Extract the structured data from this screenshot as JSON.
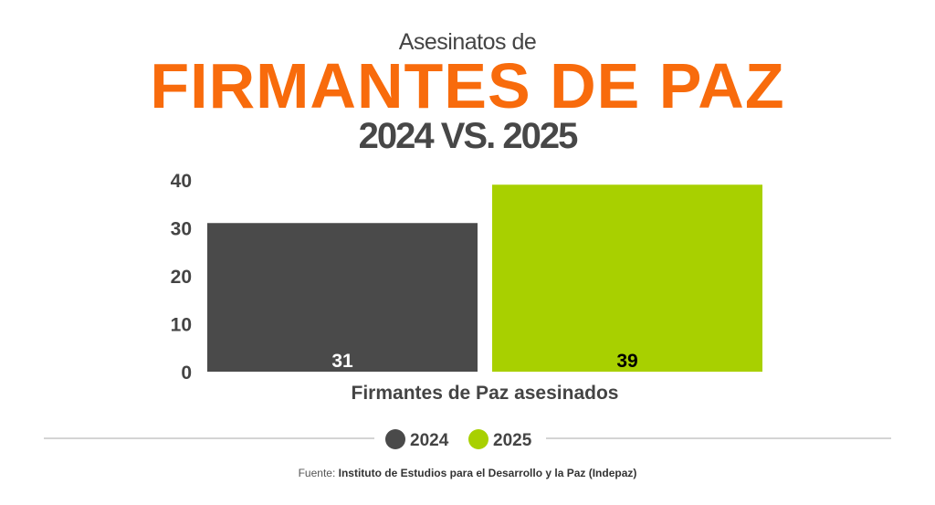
{
  "header": {
    "pre_title": "Asesinatos de",
    "title": "FIRMANTES DE PAZ",
    "subtitle": "2024 VS. 2025"
  },
  "chart_data": {
    "type": "bar",
    "title": "FIRMANTES DE PAZ",
    "categories": [
      "Firmantes de Paz asesinados"
    ],
    "xlabel": "Firmantes de Paz asesinados",
    "ylabel": "",
    "ylim": [
      0,
      40
    ],
    "yticks": [
      0,
      10,
      20,
      30,
      40
    ],
    "grid": false,
    "legend_position": "bottom",
    "series": [
      {
        "name": "2024",
        "values": [
          31
        ],
        "color": "#4a4a4a",
        "label_color": "#ffffff"
      },
      {
        "name": "2025",
        "values": [
          39
        ],
        "color": "#a8d000",
        "label_color": "#000000"
      }
    ]
  },
  "footer": {
    "source_label": "Fuente:",
    "source": "Instituto de Estudios para el Desarrollo y la Paz (Indepaz)"
  }
}
